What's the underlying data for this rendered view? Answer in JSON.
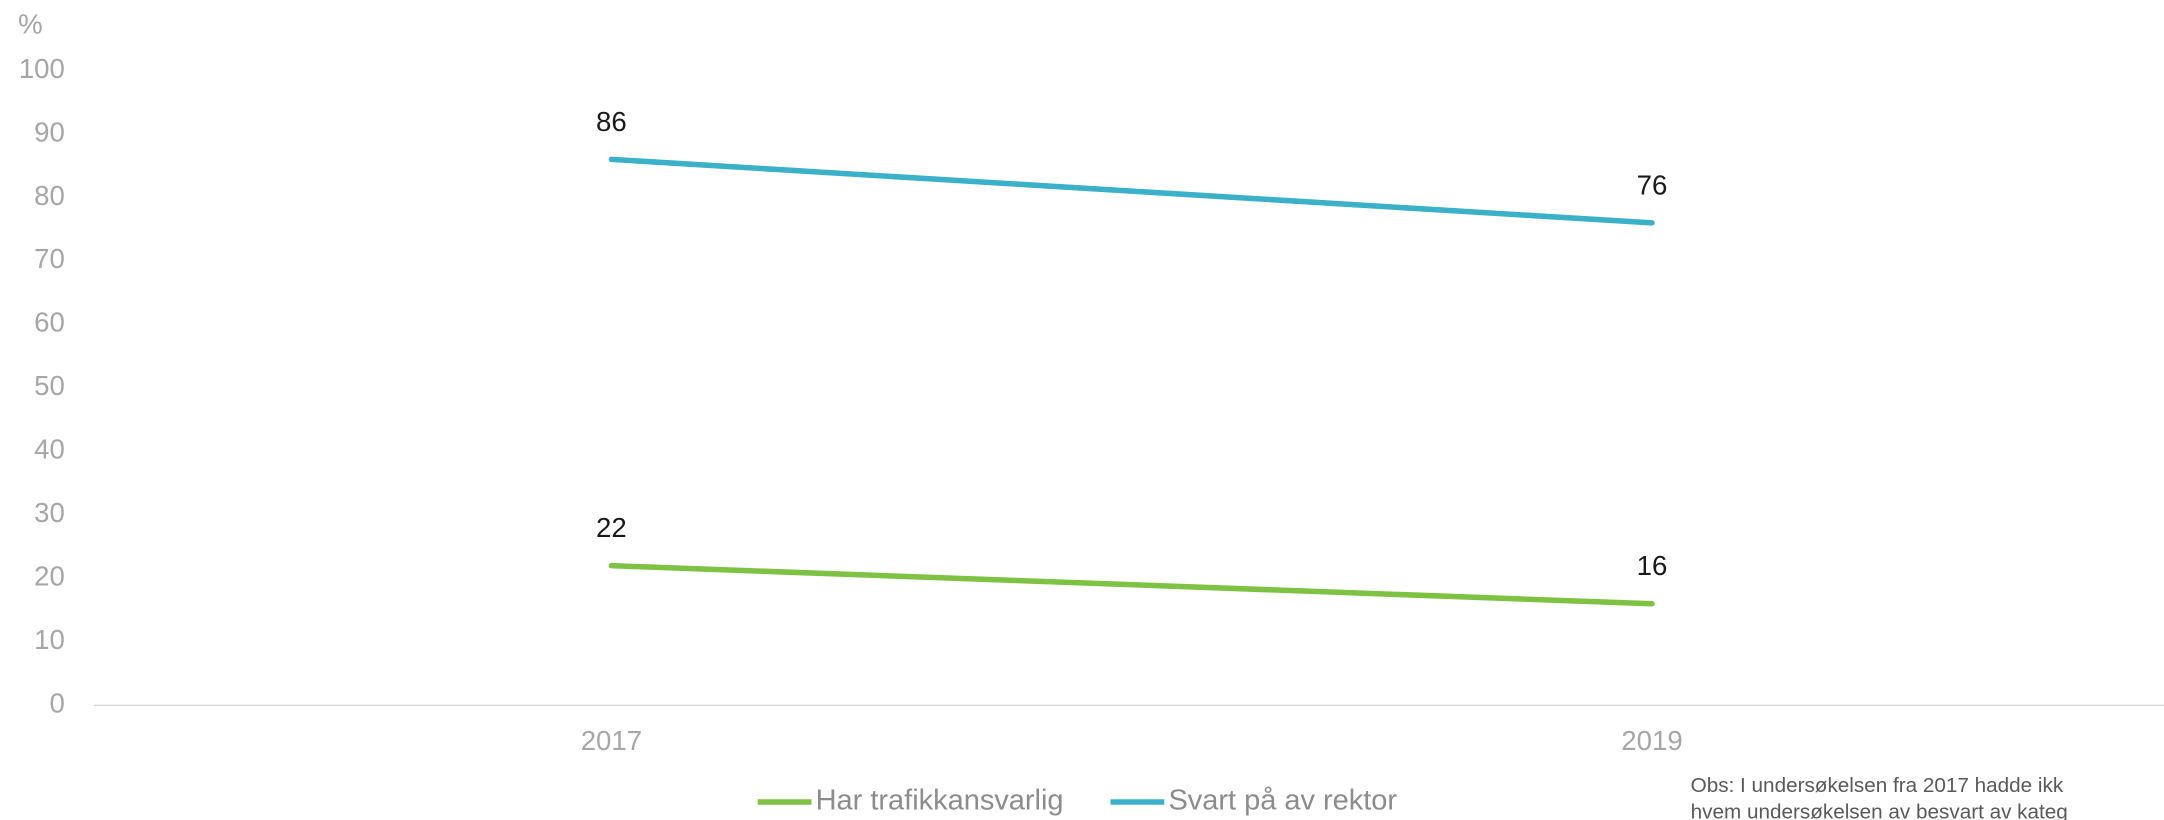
{
  "chart_data": {
    "type": "line",
    "y_unit": "%",
    "categories": [
      "2017",
      "2019"
    ],
    "series": [
      {
        "name": "Har trafikkansvarlig",
        "color": "#7dc242",
        "values": [
          22,
          16
        ]
      },
      {
        "name": "Svart på av rektor",
        "color": "#3bb0c9",
        "values": [
          86,
          76
        ]
      }
    ],
    "ylim": [
      0,
      100
    ],
    "yticks": [
      0,
      10,
      20,
      30,
      40,
      50,
      60,
      70,
      80,
      90,
      100
    ],
    "grid": false,
    "legend": "bottom",
    "note": [
      "Obs: I undersøkelsen fra 2017 hadde ikk",
      "hvem undersøkelsen av besvart av kateg"
    ]
  }
}
